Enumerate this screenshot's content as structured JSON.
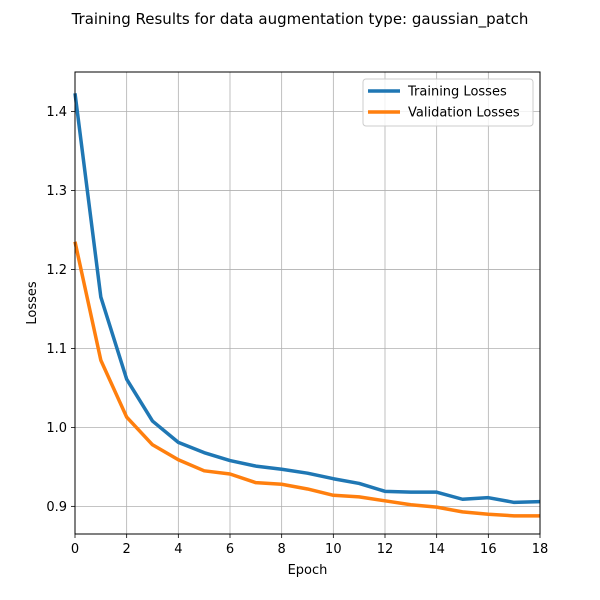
{
  "chart_data": {
    "type": "line",
    "title": "Training Results for data augmentation type: gaussian_patch",
    "xlabel": "Epoch",
    "ylabel": "Losses",
    "xlim": [
      0,
      18
    ],
    "ylim": [
      0.865,
      1.45
    ],
    "xticks": [
      0,
      2,
      4,
      6,
      8,
      10,
      12,
      14,
      16,
      18
    ],
    "yticks": [
      0.9,
      1.0,
      1.1,
      1.2,
      1.3,
      1.4
    ],
    "ytick_labels": [
      "0.9",
      "1.0",
      "1.1",
      "1.2",
      "1.3",
      "1.4"
    ],
    "grid": true,
    "legend_position": "top-right",
    "x": [
      0,
      1,
      2,
      3,
      4,
      5,
      6,
      7,
      8,
      9,
      10,
      11,
      12,
      13,
      14,
      15,
      16,
      17,
      18
    ],
    "series": [
      {
        "name": "Training Losses",
        "color": "#1f77b4",
        "values": [
          1.423,
          1.165,
          1.061,
          1.008,
          0.981,
          0.968,
          0.958,
          0.951,
          0.947,
          0.942,
          0.935,
          0.929,
          0.919,
          0.918,
          0.918,
          0.909,
          0.911,
          0.905,
          0.906
        ]
      },
      {
        "name": "Validation Losses",
        "color": "#ff7f0e",
        "values": [
          1.235,
          1.085,
          1.013,
          0.978,
          0.959,
          0.945,
          0.941,
          0.93,
          0.928,
          0.922,
          0.914,
          0.912,
          0.907,
          0.902,
          0.899,
          0.893,
          0.89,
          0.888,
          0.888
        ]
      }
    ]
  }
}
